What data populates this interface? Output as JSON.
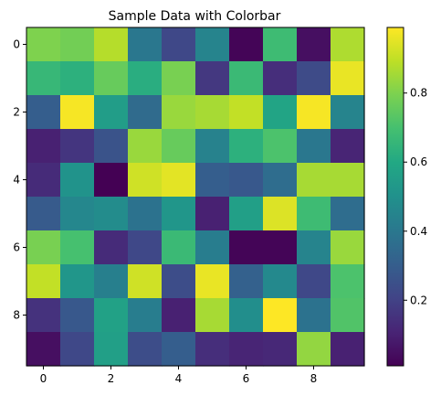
{
  "chart_data": {
    "type": "heatmap",
    "title": "Sample Data with Colorbar",
    "xlabel": "",
    "ylabel": "",
    "colormap": "viridis",
    "rows": 10,
    "cols": 10,
    "xlim": [
      -0.5,
      9.5
    ],
    "ylim": [
      9.5,
      -0.5
    ],
    "xticks": [
      0,
      2,
      4,
      6,
      8
    ],
    "yticks": [
      0,
      2,
      4,
      6,
      8
    ],
    "values": [
      [
        0.8,
        0.78,
        0.88,
        0.4,
        0.22,
        0.45,
        0.02,
        0.68,
        0.05,
        0.87
      ],
      [
        0.66,
        0.63,
        0.76,
        0.62,
        0.79,
        0.17,
        0.67,
        0.14,
        0.23,
        0.96
      ],
      [
        0.3,
        0.98,
        0.55,
        0.35,
        0.84,
        0.86,
        0.9,
        0.58,
        0.98,
        0.45
      ],
      [
        0.1,
        0.16,
        0.26,
        0.84,
        0.76,
        0.44,
        0.63,
        0.71,
        0.4,
        0.11
      ],
      [
        0.13,
        0.51,
        0.01,
        0.92,
        0.95,
        0.3,
        0.28,
        0.36,
        0.86,
        0.86
      ],
      [
        0.29,
        0.46,
        0.48,
        0.38,
        0.52,
        0.1,
        0.56,
        0.94,
        0.68,
        0.36
      ],
      [
        0.79,
        0.7,
        0.13,
        0.22,
        0.67,
        0.42,
        0.02,
        0.02,
        0.45,
        0.84
      ],
      [
        0.9,
        0.52,
        0.43,
        0.92,
        0.24,
        0.96,
        0.31,
        0.47,
        0.22,
        0.71
      ],
      [
        0.15,
        0.28,
        0.57,
        0.42,
        0.1,
        0.86,
        0.49,
        0.99,
        0.38,
        0.72
      ],
      [
        0.05,
        0.22,
        0.56,
        0.24,
        0.3,
        0.14,
        0.11,
        0.12,
        0.83,
        0.1
      ]
    ],
    "colorbar": {
      "range": [
        0.01,
        0.99
      ],
      "ticks": [
        "0.2",
        "0.4",
        "0.6",
        "0.8"
      ]
    }
  }
}
